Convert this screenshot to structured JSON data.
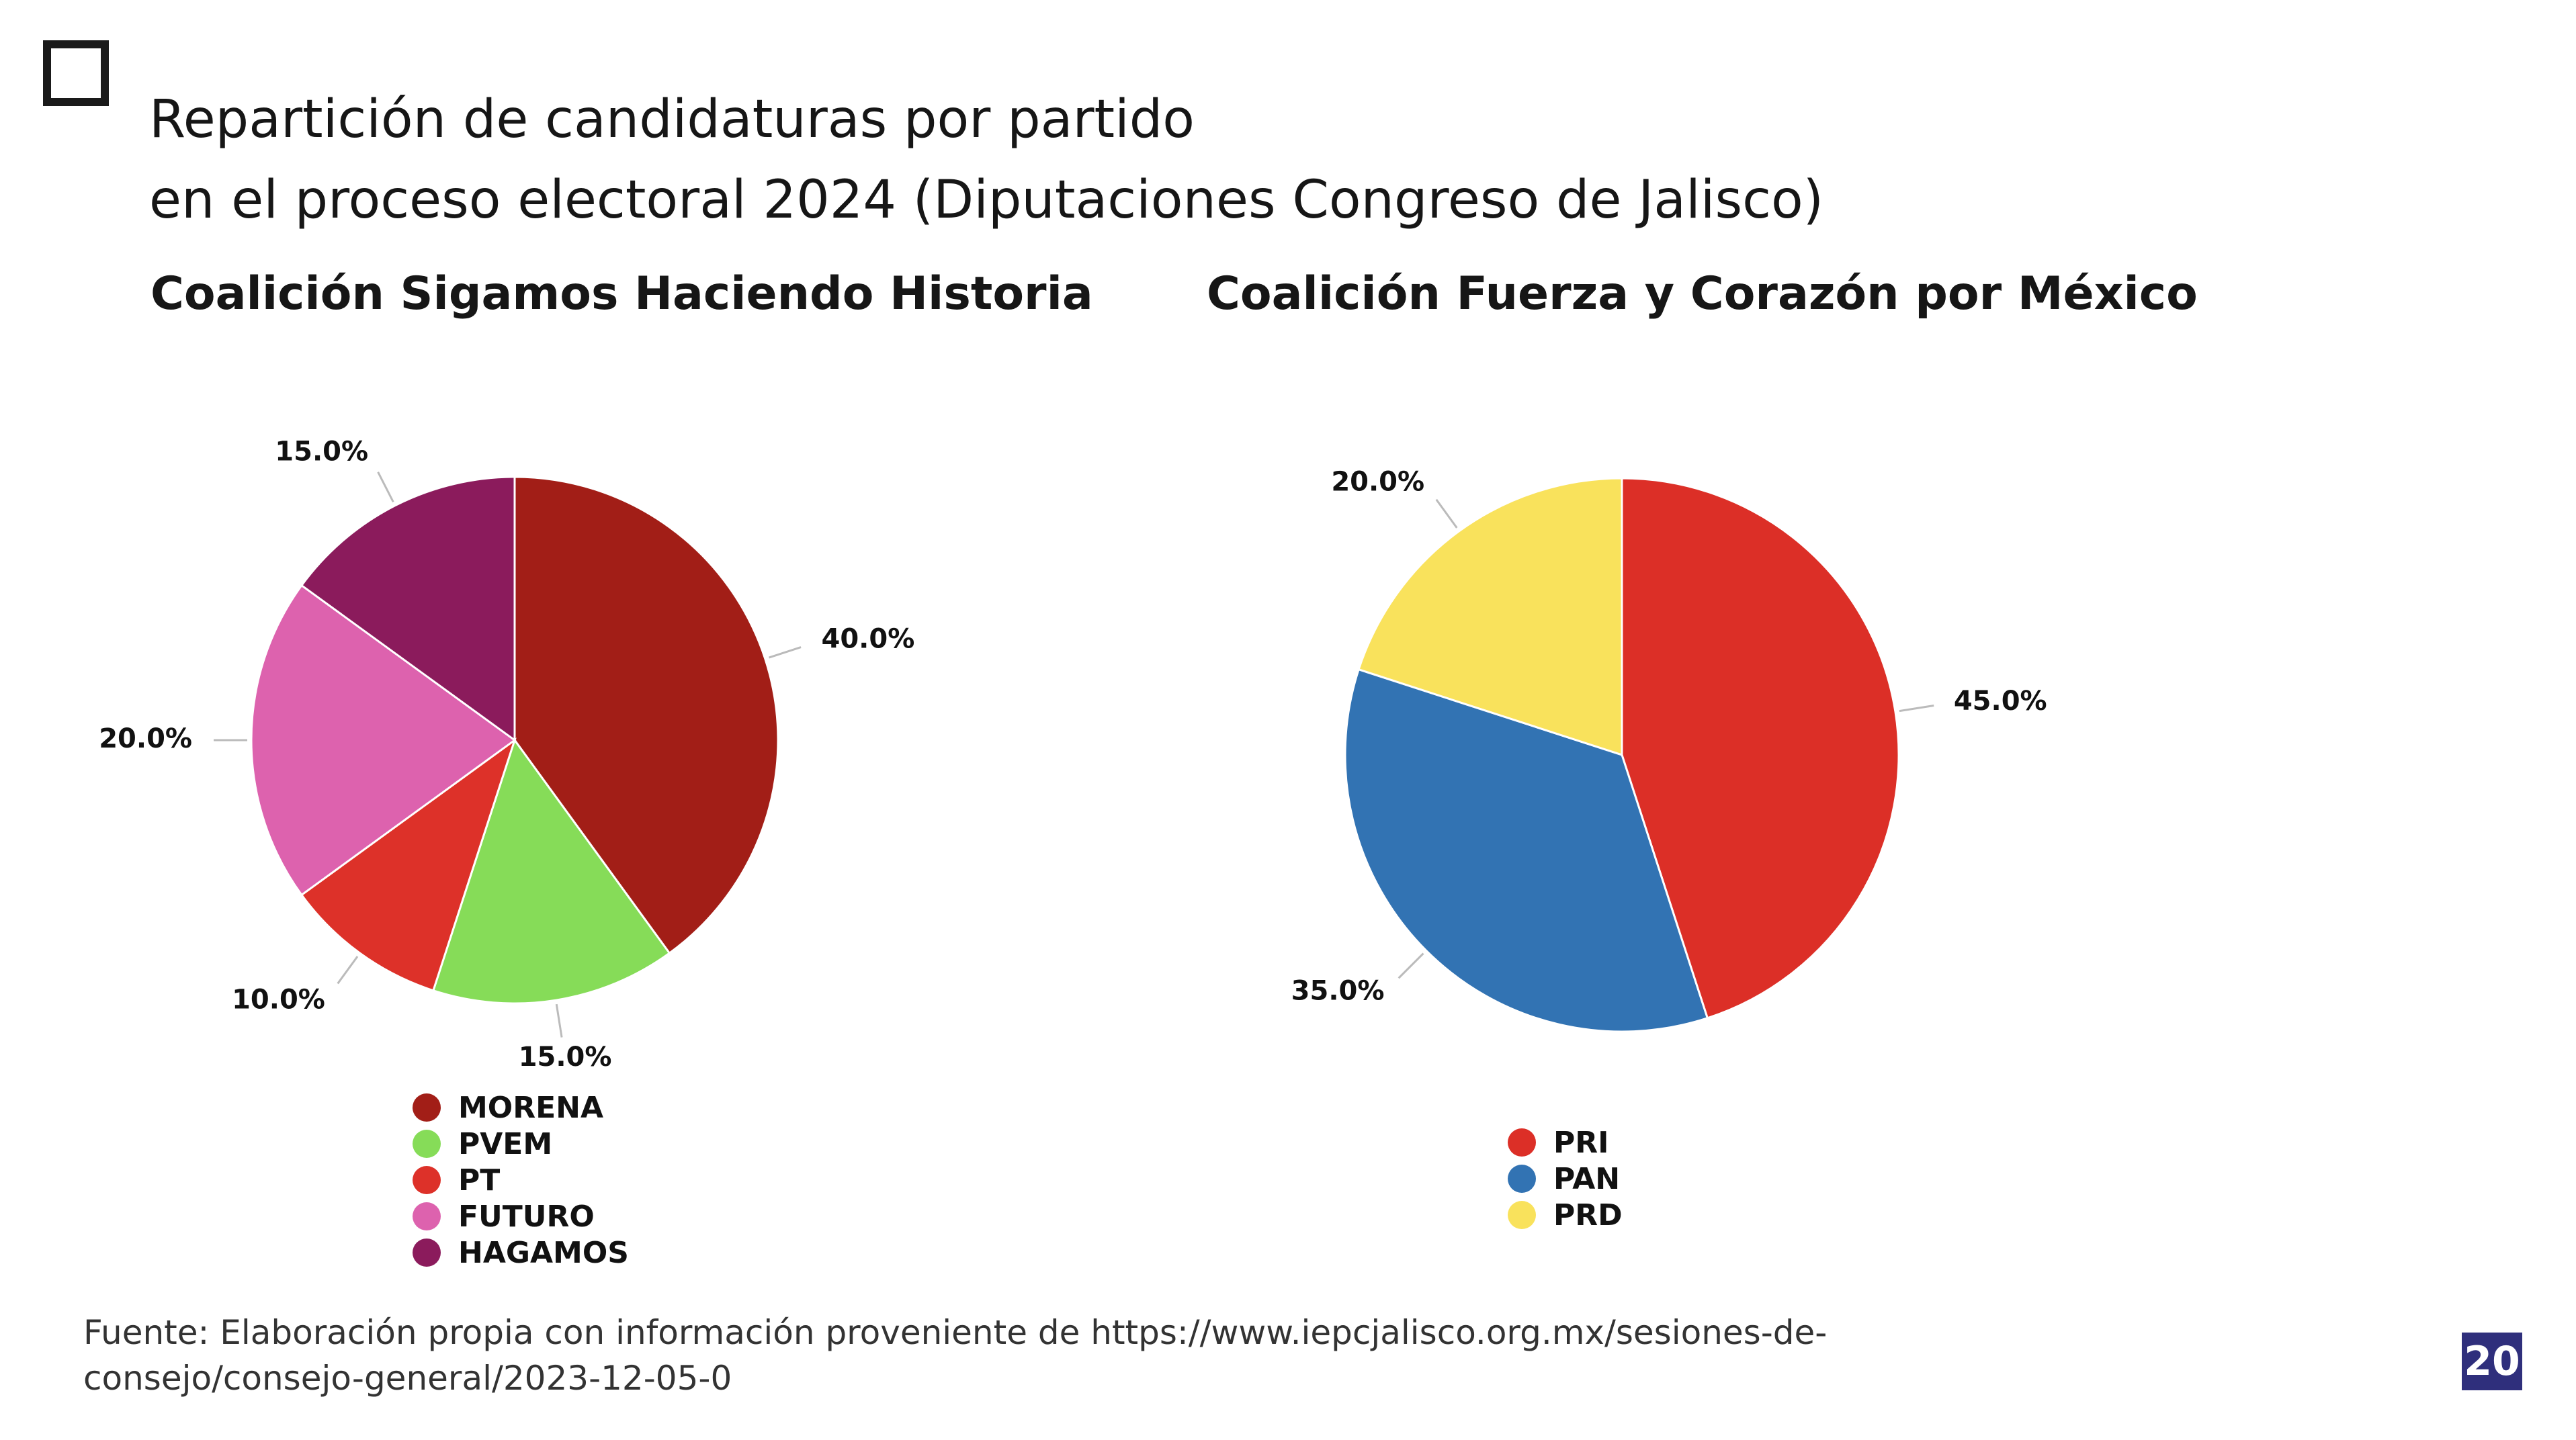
{
  "title": {
    "line1": "Repartición de candidaturas por partido",
    "line2": "en el proceso electoral 2024 (Diputaciones Congreso de Jalisco)"
  },
  "chart_data": [
    {
      "type": "pie",
      "title": "Coalición Sigamos Haciendo Historia",
      "categories": [
        "MORENA",
        "PVEM",
        "PT",
        "FUTURO",
        "HAGAMOS"
      ],
      "values": [
        40.0,
        15.0,
        10.0,
        20.0,
        15.0
      ],
      "value_labels": [
        "40.0%",
        "15.0%",
        "10.0%",
        "20.0%",
        "15.0%"
      ],
      "colors": [
        "#a21e17",
        "#86dc58",
        "#dd3129",
        "#dd62ae",
        "#8b1b5c"
      ],
      "start_angle_deg": 0,
      "direction": "clockwise",
      "legend_position": "bottom"
    },
    {
      "type": "pie",
      "title": "Coalición Fuerza y Corazón por México",
      "categories": [
        "PRI",
        "PAN",
        "PRD"
      ],
      "values": [
        45.0,
        35.0,
        20.0
      ],
      "value_labels": [
        "45.0%",
        "35.0%",
        "20.0%"
      ],
      "colors": [
        "#dc2f27",
        "#3273b3",
        "#f9e25c"
      ],
      "start_angle_deg": 0,
      "direction": "clockwise",
      "legend_position": "bottom"
    }
  ],
  "source": {
    "line1": "Fuente: Elaboración propia con información proveniente de https://www.iepcjalisco.org.mx/sesiones-de-",
    "line2": "consejo/consejo-general/2023-12-05-0"
  },
  "page_number": "20"
}
